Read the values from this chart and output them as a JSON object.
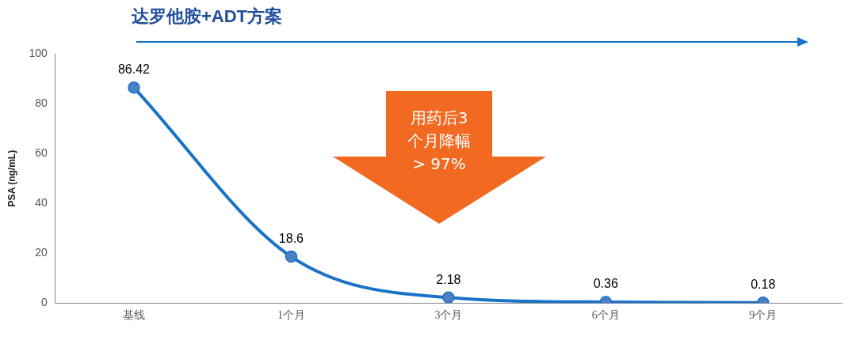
{
  "chart_data": {
    "type": "line",
    "title": "达罗他胺+ADT方案",
    "ylabel": "PSA (ng/mL)",
    "categories": [
      "基线",
      "1个月",
      "3个月",
      "6个月",
      "9个月"
    ],
    "values": [
      86.42,
      18.6,
      2.18,
      0.36,
      0.18
    ],
    "color": "#1a72c6",
    "marker": "circle",
    "data_labels": true,
    "ylim": [
      0,
      100
    ],
    "yticks": [
      0,
      20,
      40,
      60,
      80,
      100
    ],
    "annotations": [
      "用药后3\n个月降幅\n> 97%"
    ]
  }
}
